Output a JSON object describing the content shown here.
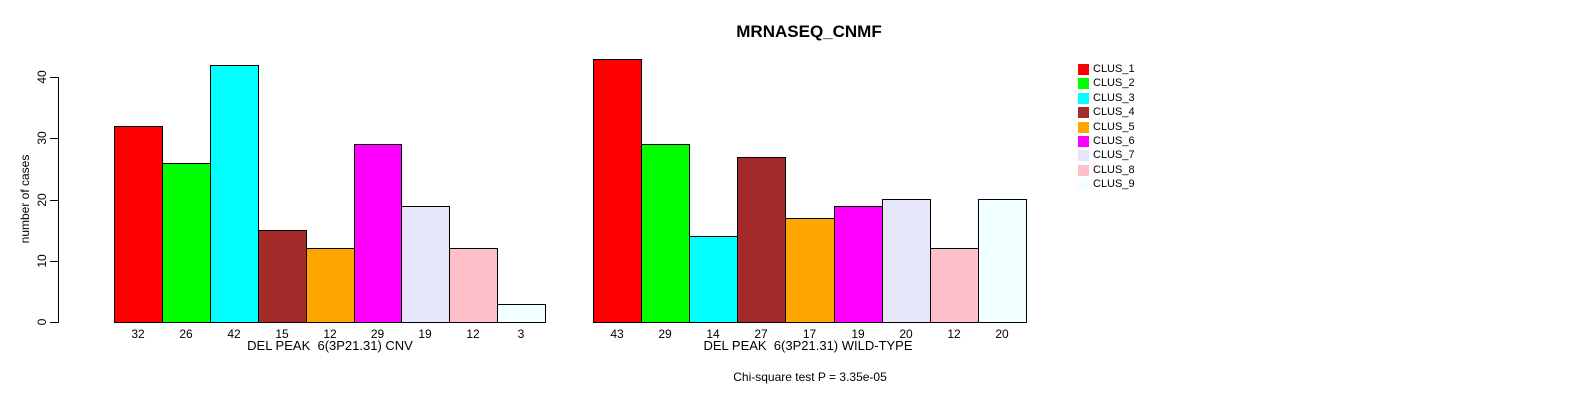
{
  "title": "MRNASEQ_CNMF",
  "footnote": "Chi-square test P = 3.35e-05",
  "y_axis": {
    "label": "number of cases",
    "ticks": [
      0,
      10,
      20,
      30,
      40
    ]
  },
  "palette": [
    "#FF0000",
    "#00FF00",
    "#00FFFF",
    "#A52A2A",
    "#FFA500",
    "#FF00FF",
    "#E6E6FA",
    "#FFC0CB",
    "#F0FFFF"
  ],
  "legend": {
    "items": [
      "CLUS_1",
      "CLUS_2",
      "CLUS_3",
      "CLUS_4",
      "CLUS_5",
      "CLUS_6",
      "CLUS_7",
      "CLUS_8",
      "CLUS_9"
    ]
  },
  "chart_data": [
    {
      "type": "bar",
      "title": "MRNASEQ_CNMF",
      "categories": [
        "CLUS_1",
        "CLUS_2",
        "CLUS_3",
        "CLUS_4",
        "CLUS_5",
        "CLUS_6",
        "CLUS_7",
        "CLUS_8",
        "CLUS_9"
      ],
      "values": [
        32,
        26,
        42,
        15,
        12,
        29,
        19,
        12,
        3
      ],
      "bar_labels": [
        "32",
        "26",
        "42",
        "15",
        "12",
        "29",
        "19",
        "12",
        "3"
      ],
      "xlabel": "DEL PEAK  6(3P21.31) CNV",
      "ylabel": "number of cases",
      "ylim": [
        0,
        40
      ],
      "grid": false,
      "legend_position": "right"
    },
    {
      "type": "bar",
      "title": "MRNASEQ_CNMF",
      "categories": [
        "CLUS_1",
        "CLUS_2",
        "CLUS_3",
        "CLUS_4",
        "CLUS_5",
        "CLUS_6",
        "CLUS_7",
        "CLUS_8",
        "CLUS_9"
      ],
      "values": [
        43,
        29,
        14,
        27,
        17,
        19,
        20,
        12,
        20
      ],
      "bar_labels": [
        "43",
        "29",
        "14",
        "27",
        "17",
        "19",
        "20",
        "12",
        "20"
      ],
      "xlabel": "DEL PEAK  6(3P21.31) WILD-TYPE",
      "ylabel": "number of cases",
      "ylim": [
        0,
        40
      ],
      "grid": false,
      "legend_position": "right"
    }
  ]
}
